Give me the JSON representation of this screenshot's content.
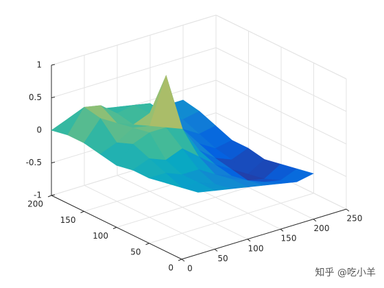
{
  "chart_data": {
    "type": "surface",
    "x": [
      0,
      25,
      50,
      75,
      100,
      125,
      150,
      175,
      200
    ],
    "y": [
      0,
      25,
      50,
      75,
      100,
      125,
      150,
      175,
      200
    ],
    "z": [
      [
        0.1,
        -0.05,
        -0.1,
        -0.15,
        -0.2,
        -0.25,
        -0.3,
        -0.35,
        -0.3
      ],
      [
        0.05,
        -0.1,
        -0.1,
        -0.2,
        -0.2,
        -0.3,
        -0.4,
        -0.45,
        -0.35
      ],
      [
        0.0,
        0.0,
        -0.1,
        -0.1,
        -0.25,
        -0.35,
        -0.5,
        -0.55,
        -0.4
      ],
      [
        0.0,
        0.1,
        0.0,
        0.1,
        -0.1,
        -0.3,
        -0.45,
        -0.6,
        -0.45
      ],
      [
        -0.05,
        0.2,
        0.3,
        0.3,
        0.2,
        -0.2,
        -0.4,
        -0.5,
        -0.4
      ],
      [
        0.0,
        0.1,
        0.25,
        0.2,
        0.9,
        0.0,
        -0.3,
        -0.45,
        -0.4
      ],
      [
        0.05,
        0.35,
        0.2,
        0.1,
        0.2,
        0.0,
        -0.2,
        -0.35,
        -0.3
      ],
      [
        0.05,
        0.4,
        0.35,
        0.15,
        0.2,
        0.15,
        -0.1,
        -0.25,
        -0.2
      ],
      [
        0.0,
        0.1,
        0.1,
        0.1,
        0.05,
        0.0,
        -0.1,
        -0.15,
        -0.15
      ]
    ],
    "xlim": [
      0,
      250
    ],
    "xticks": [
      0,
      50,
      100,
      150,
      200,
      250
    ],
    "ylim": [
      0,
      200
    ],
    "yticks": [
      0,
      50,
      100,
      150,
      200
    ],
    "zlim": [
      -1,
      1
    ],
    "zticks": [
      -1,
      -0.5,
      0,
      0.5,
      1
    ],
    "grid": true,
    "colormap": "parula",
    "watermark": "知乎 @吃小羊"
  }
}
